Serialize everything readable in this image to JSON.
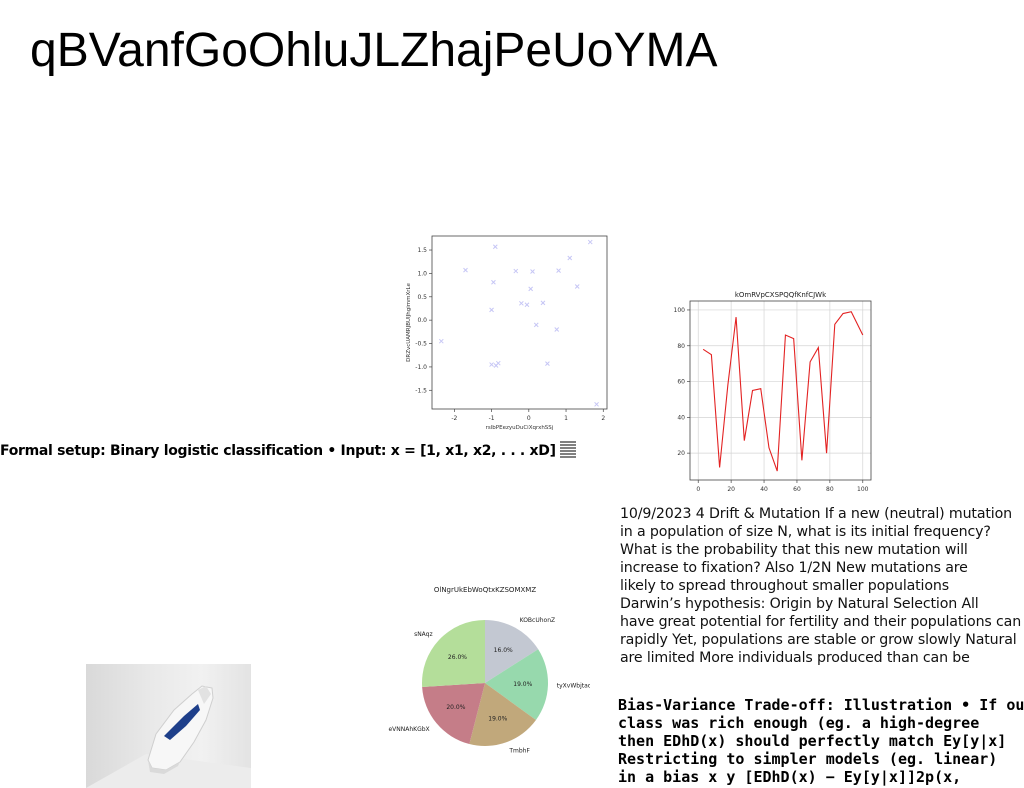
{
  "title": "qBVanfGoOhluJLZhajPeUoYMA",
  "formal_setup": "Formal setup: Binary logistic classification • Input: x = [1, x1, x2, . . . xD] ",
  "drift_lines": [
    "10/9/2023 4 Drift & Mutation  If a new (neutral) mutation",
    "in a population of size N, what is its initial frequency?",
    " What is the probability that this new mutation will",
    "increase to fixation? Also 1/2N  New mutations are",
    "likely to spread throughout smaller populations",
    "Darwin’s hypothesis: Origin by Natural Selection All",
    "have great potential for fertility and their populations can",
    "rapidly Yet, populations are stable or grow slowly Natural",
    "are limited More individuals produced than can be"
  ],
  "bias_lines": [
    "Bias-Variance Trade-off: Illustration • If our",
    "class was rich enough (eg. a high-degree",
    "then EDhD(x) should perfectly match Ey[y|x]",
    "Restricting to simpler models (eg. linear)",
    "in a bias  x  y [EDhD(x) − Ey[y|x]]2p(x,"
  ],
  "chart_data": [
    {
      "type": "scatter",
      "title": "",
      "xlabel": "rslbPEezyuDuCiXqrxhSSj",
      "ylabel": "DRZvcUAMRJBUIJhgimmXrLe",
      "xlim": [
        -2.6,
        2.1
      ],
      "ylim": [
        -1.9,
        1.8
      ],
      "xticks": [
        -2,
        -1,
        0,
        1,
        2
      ],
      "yticks": [
        -1.5,
        -1.0,
        -0.5,
        0.0,
        0.5,
        1.0,
        1.5
      ],
      "marker": "x",
      "color": "#c6c6f5",
      "points": [
        [
          -2.35,
          -0.45
        ],
        [
          -1.7,
          1.07
        ],
        [
          -1.0,
          0.22
        ],
        [
          -0.95,
          0.81
        ],
        [
          -0.9,
          1.57
        ],
        [
          -1.0,
          -0.95
        ],
        [
          -0.88,
          -0.97
        ],
        [
          -0.82,
          -0.92
        ],
        [
          -0.35,
          1.05
        ],
        [
          -0.2,
          0.36
        ],
        [
          -0.05,
          0.33
        ],
        [
          0.05,
          0.67
        ],
        [
          0.1,
          1.04
        ],
        [
          0.2,
          -0.1
        ],
        [
          0.38,
          0.37
        ],
        [
          0.5,
          -0.93
        ],
        [
          0.75,
          -0.2
        ],
        [
          0.8,
          1.06
        ],
        [
          1.1,
          1.33
        ],
        [
          1.3,
          0.72
        ],
        [
          1.65,
          1.67
        ],
        [
          1.82,
          -1.8
        ]
      ]
    },
    {
      "type": "line",
      "title": "kOmRVpCXSPQQfKnfCJWk",
      "xlabel": "",
      "ylabel": "",
      "xlim": [
        -5,
        105
      ],
      "ylim": [
        5,
        105
      ],
      "xticks": [
        0,
        20,
        40,
        60,
        80,
        100
      ],
      "yticks": [
        20,
        40,
        60,
        80,
        100
      ],
      "grid": true,
      "color": "#e32222",
      "x": [
        3,
        8,
        13,
        18,
        23,
        28,
        33,
        38,
        43,
        48,
        53,
        58,
        63,
        68,
        73,
        78,
        83,
        88,
        93,
        100
      ],
      "y": [
        78,
        75,
        12,
        58,
        96,
        27,
        55,
        56,
        23,
        10,
        86,
        84,
        16,
        71,
        79,
        20,
        92,
        98,
        99,
        86
      ]
    },
    {
      "type": "pie",
      "title": "OlNgrUkEbWoQtxKZSOMXMZ",
      "slices": [
        {
          "label": "KOBcUhonZ",
          "value": 16.0,
          "color": "#c3c8d2"
        },
        {
          "label": "tyXvWbjtao",
          "value": 19.0,
          "color": "#97d9ad"
        },
        {
          "label": "TmbhF",
          "value": 19.0,
          "color": "#c1a87b"
        },
        {
          "label": "eVNNAhKGbX",
          "value": 20.0,
          "color": "#c57d88"
        },
        {
          "label": "sNAqz",
          "value": 26.0,
          "color": "#b4de9a"
        }
      ]
    }
  ]
}
